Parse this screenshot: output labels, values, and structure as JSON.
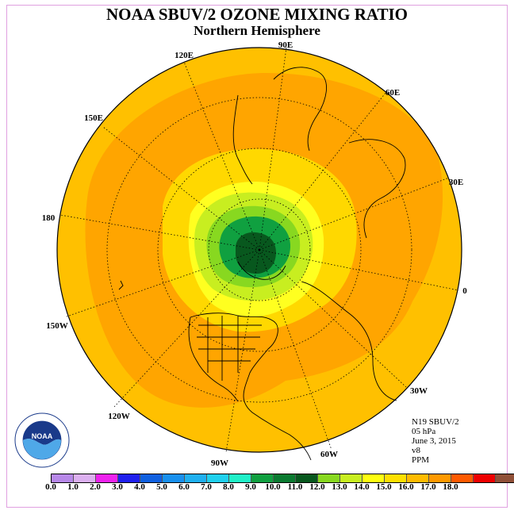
{
  "title": "NOAA SBUV/2 OZONE MIXING RATIO",
  "subtitle": "Northern Hemisphere",
  "longitude_labels": [
    "90E",
    "60E",
    "30E",
    "0",
    "30W",
    "60W",
    "90W",
    "120W",
    "150W",
    "180",
    "150E",
    "120E"
  ],
  "info": {
    "instrument": "N19 SBUV/2",
    "level": "05 hPa",
    "date": "June 3, 2015",
    "version": "v8",
    "units": "PPM"
  },
  "logo": {
    "text": "NOAA",
    "ring_text": "NATIONAL OCEANIC AND ATMOSPHERIC ADMINISTRATION · U.S. DEPARTMENT OF COMMERCE"
  },
  "colorbar": {
    "colors": [
      "#b788e8",
      "#dcb0f0",
      "#ee22ee",
      "#2020ee",
      "#1060e0",
      "#1890ee",
      "#20b0f0",
      "#20d0ee",
      "#20f0c8",
      "#10a040",
      "#0a7a30",
      "#08581e",
      "#88d820",
      "#c8ee20",
      "#ffff10",
      "#ffe000",
      "#ffbb00",
      "#ff9900",
      "#ff5a00",
      "#ee0000",
      "#905038"
    ],
    "ticks": [
      "0.0",
      "1.0",
      "2.0",
      "3.0",
      "4.0",
      "5.0",
      "6.0",
      "7.0",
      "8.0",
      "9.0",
      "10.0",
      "11.0",
      "12.0",
      "13.0",
      "14.0",
      "15.0",
      "16.0",
      "17.0",
      "18.0"
    ]
  },
  "field_colors": {
    "outer": "#ffc000",
    "band14": "#ffa500",
    "band13": "#ffd800",
    "band12": "#ffff20",
    "band11": "#c8ee20",
    "band10": "#88d820",
    "band9": "#10a040",
    "core": "#08581e"
  }
}
